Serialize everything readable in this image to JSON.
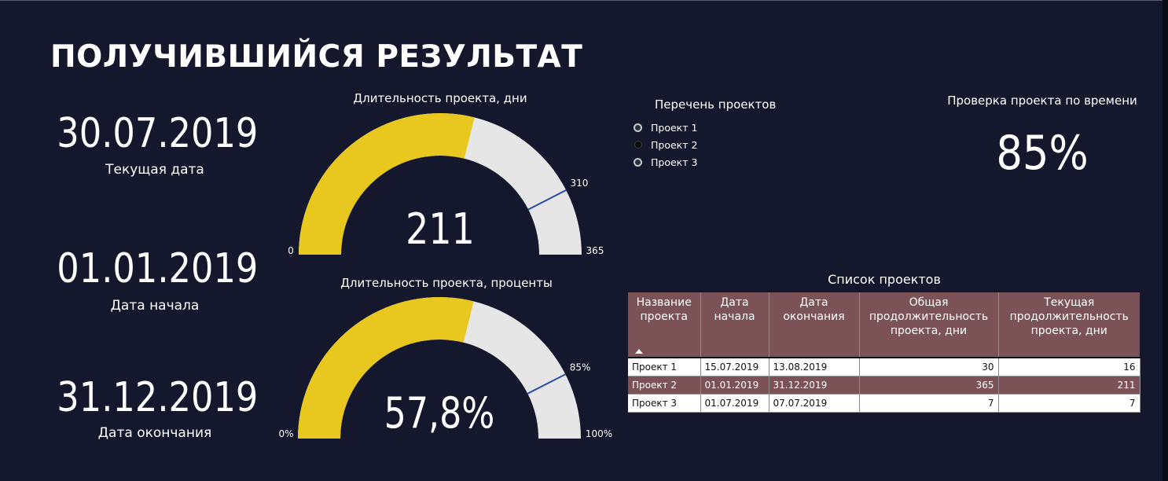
{
  "page": {
    "title": "ПОЛУЧИВШИЙСЯ РЕЗУЛЬТАТ"
  },
  "kpis": [
    {
      "value": "30.07.2019",
      "label": "Текущая дата"
    },
    {
      "value": "01.01.2019",
      "label": "Дата начала"
    },
    {
      "value": "31.12.2019",
      "label": "Дата окончания"
    }
  ],
  "gauge_days": {
    "title": "Длительность проекта, дни",
    "center_label": "211",
    "min_label": "0",
    "max_label": "365",
    "target_label": "310",
    "min": 0,
    "max": 365,
    "value": 211,
    "target": 310,
    "fill_color": "#e8c81e",
    "track_color": "#e6e6e6",
    "target_color": "#2c4fa3"
  },
  "gauge_percent": {
    "title": "Длительность проекта, проценты",
    "center_label": "57,8%",
    "min_label": "0%",
    "max_label": "100%",
    "target_label": "85%",
    "min": 0,
    "max": 100,
    "value": 57.8,
    "target": 85,
    "fill_color": "#e8c81e",
    "track_color": "#e6e6e6",
    "target_color": "#2c4fa3"
  },
  "slicer": {
    "title": "Перечень проектов",
    "items": [
      {
        "label": "Проект 1",
        "selected": false
      },
      {
        "label": "Проект 2",
        "selected": true
      },
      {
        "label": "Проект 3",
        "selected": false
      }
    ]
  },
  "time_check": {
    "title": "Проверка проекта по времени",
    "value": "85%"
  },
  "projects_table": {
    "title": "Список проектов",
    "columns": [
      "Название проекта",
      "Дата начала",
      "Дата окончания",
      "Общая продолжительность проекта, дни",
      "Текущая продолжительность проекта, дни"
    ],
    "rows": [
      {
        "name": "Проект 1",
        "start": "15.07.2019",
        "end": "13.08.2019",
        "total": "30",
        "current": "16"
      },
      {
        "name": "Проект 2",
        "start": "01.01.2019",
        "end": "31.12.2019",
        "total": "365",
        "current": "211"
      },
      {
        "name": "Проект 3",
        "start": "01.07.2019",
        "end": "07.07.2019",
        "total": "7",
        "current": "7"
      }
    ],
    "header_color": "#7b5356"
  }
}
